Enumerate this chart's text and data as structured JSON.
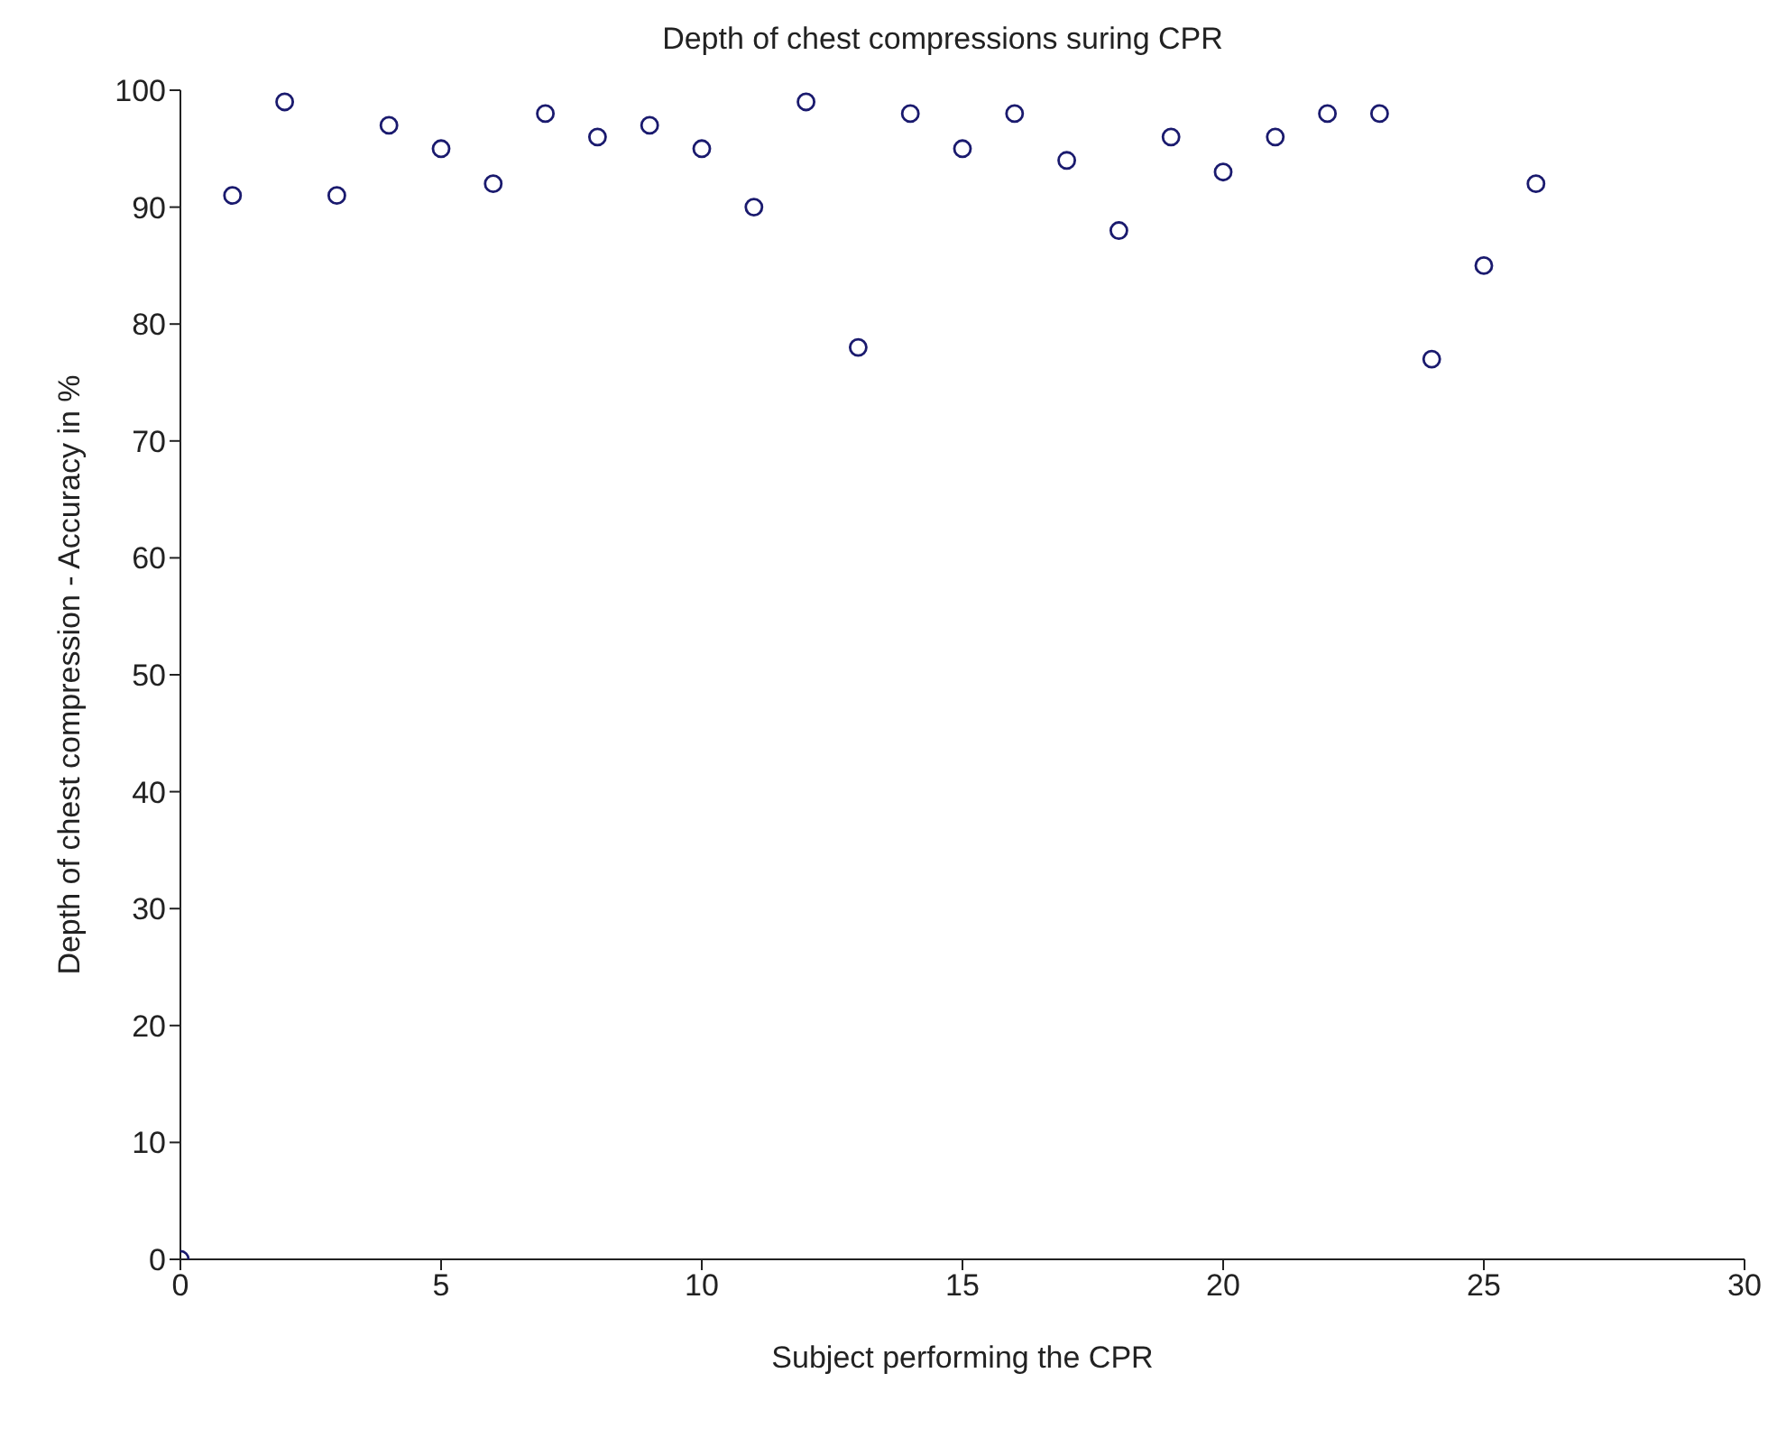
{
  "chart_data": {
    "type": "scatter",
    "title": "Depth of chest compressions suring CPR",
    "xlabel": "Subject performing the CPR",
    "ylabel": "Depth of chest compression - Accuracy in %",
    "x": [
      0,
      1,
      2,
      3,
      4,
      5,
      6,
      7,
      8,
      9,
      10,
      11,
      12,
      13,
      14,
      15,
      16,
      17,
      18,
      19,
      20,
      21,
      22,
      23,
      24,
      25,
      26
    ],
    "series": [
      {
        "color": "#1a1a6e",
        "values": [
          0,
          91,
          99,
          91,
          97,
          95,
          92,
          98,
          96,
          97,
          95,
          90,
          99,
          78,
          98,
          95,
          98,
          94,
          88,
          96,
          93,
          96,
          98,
          98,
          77,
          85,
          92
        ]
      }
    ],
    "xlim": [
      0,
      30
    ],
    "xticks": [
      0,
      5,
      10,
      15,
      20,
      25,
      30
    ],
    "ylim": [
      0,
      100
    ],
    "yticks": [
      0,
      10,
      20,
      30,
      40,
      50,
      60,
      70,
      80,
      90,
      100
    ],
    "grid": false,
    "legend": false,
    "marker": "circle"
  }
}
